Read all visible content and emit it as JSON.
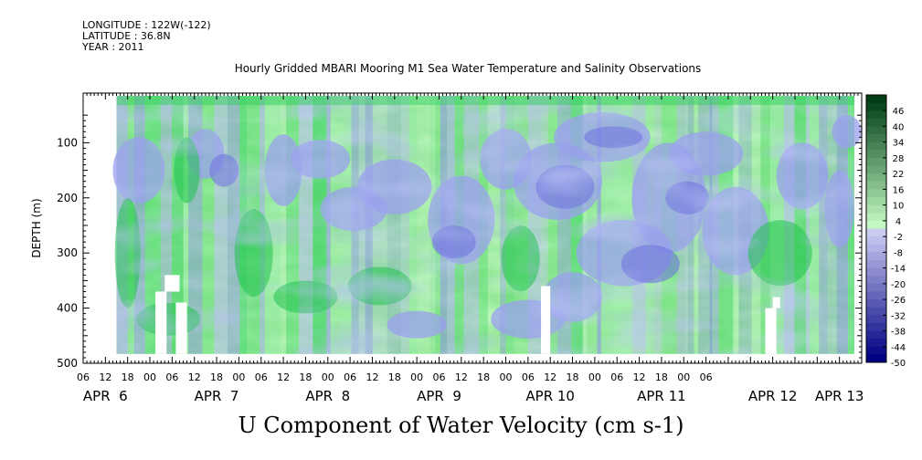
{
  "header": {
    "longitude": "LONGITUDE : 122W(-122)",
    "latitude": "LATITUDE : 36.8N",
    "year": "YEAR : 2011",
    "title": "Hourly Gridded MBARI Mooring M1 Sea Water Temperature and Salinity Observations"
  },
  "chart_data": {
    "type": "heatmap",
    "title": "Hourly Gridded MBARI Mooring M1 Sea Water Temperature and Salinity Observations",
    "xlabel": "U Component of Water Velocity (cm s-1)",
    "ylabel": "DEPTH (m)",
    "y_axis": {
      "ticks": [
        100,
        200,
        300,
        400,
        500
      ],
      "tick_labels": [
        "100",
        "200",
        "300",
        "400",
        "500"
      ],
      "range": [
        500,
        10
      ],
      "inverted": true
    },
    "x_axis": {
      "range_hours": [
        -18,
        192
      ],
      "hour_ticks": [
        "06",
        "12",
        "18",
        "00",
        "06",
        "12",
        "18",
        "00",
        "06",
        "12",
        "18",
        "00",
        "06",
        "12",
        "18",
        "00",
        "06",
        "12",
        "18",
        "00",
        "06",
        "12",
        "18",
        "00",
        "06",
        "12",
        "18",
        "00",
        "06"
      ],
      "day_labels": [
        "APR  6",
        "APR  7",
        "APR  8",
        "APR  9",
        "APR 10",
        "APR 11",
        "APR 12",
        "APR 13"
      ],
      "day_label_hours": [
        -12,
        18,
        48,
        78,
        108,
        138,
        168,
        186
      ]
    },
    "colorbar": {
      "levels": [
        "46",
        "40",
        "34",
        "28",
        "22",
        "16",
        "10",
        "4",
        "-2",
        "-8",
        "-14",
        "-20",
        "-26",
        "-32",
        "-38",
        "-44",
        "-50"
      ],
      "range": [
        -50,
        52
      ]
    },
    "data_extent": {
      "x_hours": [
        -9,
        193
      ],
      "depth": [
        15,
        483
      ]
    }
  }
}
